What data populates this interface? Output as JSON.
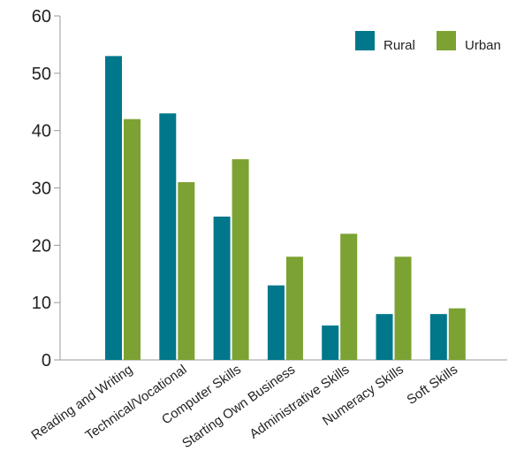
{
  "chart_data": {
    "type": "bar",
    "categories": [
      "Reading and Writing",
      "Technical/Vocational",
      "Computer Skills",
      "Starting Own Business",
      "Administrative Skills",
      "Numeracy Skills",
      "Soft Skills"
    ],
    "series": [
      {
        "name": "Rural",
        "color": "#00778B",
        "values": [
          53,
          43,
          25,
          13,
          6,
          8,
          8
        ]
      },
      {
        "name": "Urban",
        "color": "#7BA232",
        "values": [
          42,
          31,
          35,
          18,
          22,
          18,
          9
        ]
      }
    ],
    "ylim": [
      0,
      60
    ],
    "yticks": [
      0,
      10,
      20,
      30,
      40,
      50,
      60
    ],
    "grid": false,
    "legend_position": "top-right"
  }
}
